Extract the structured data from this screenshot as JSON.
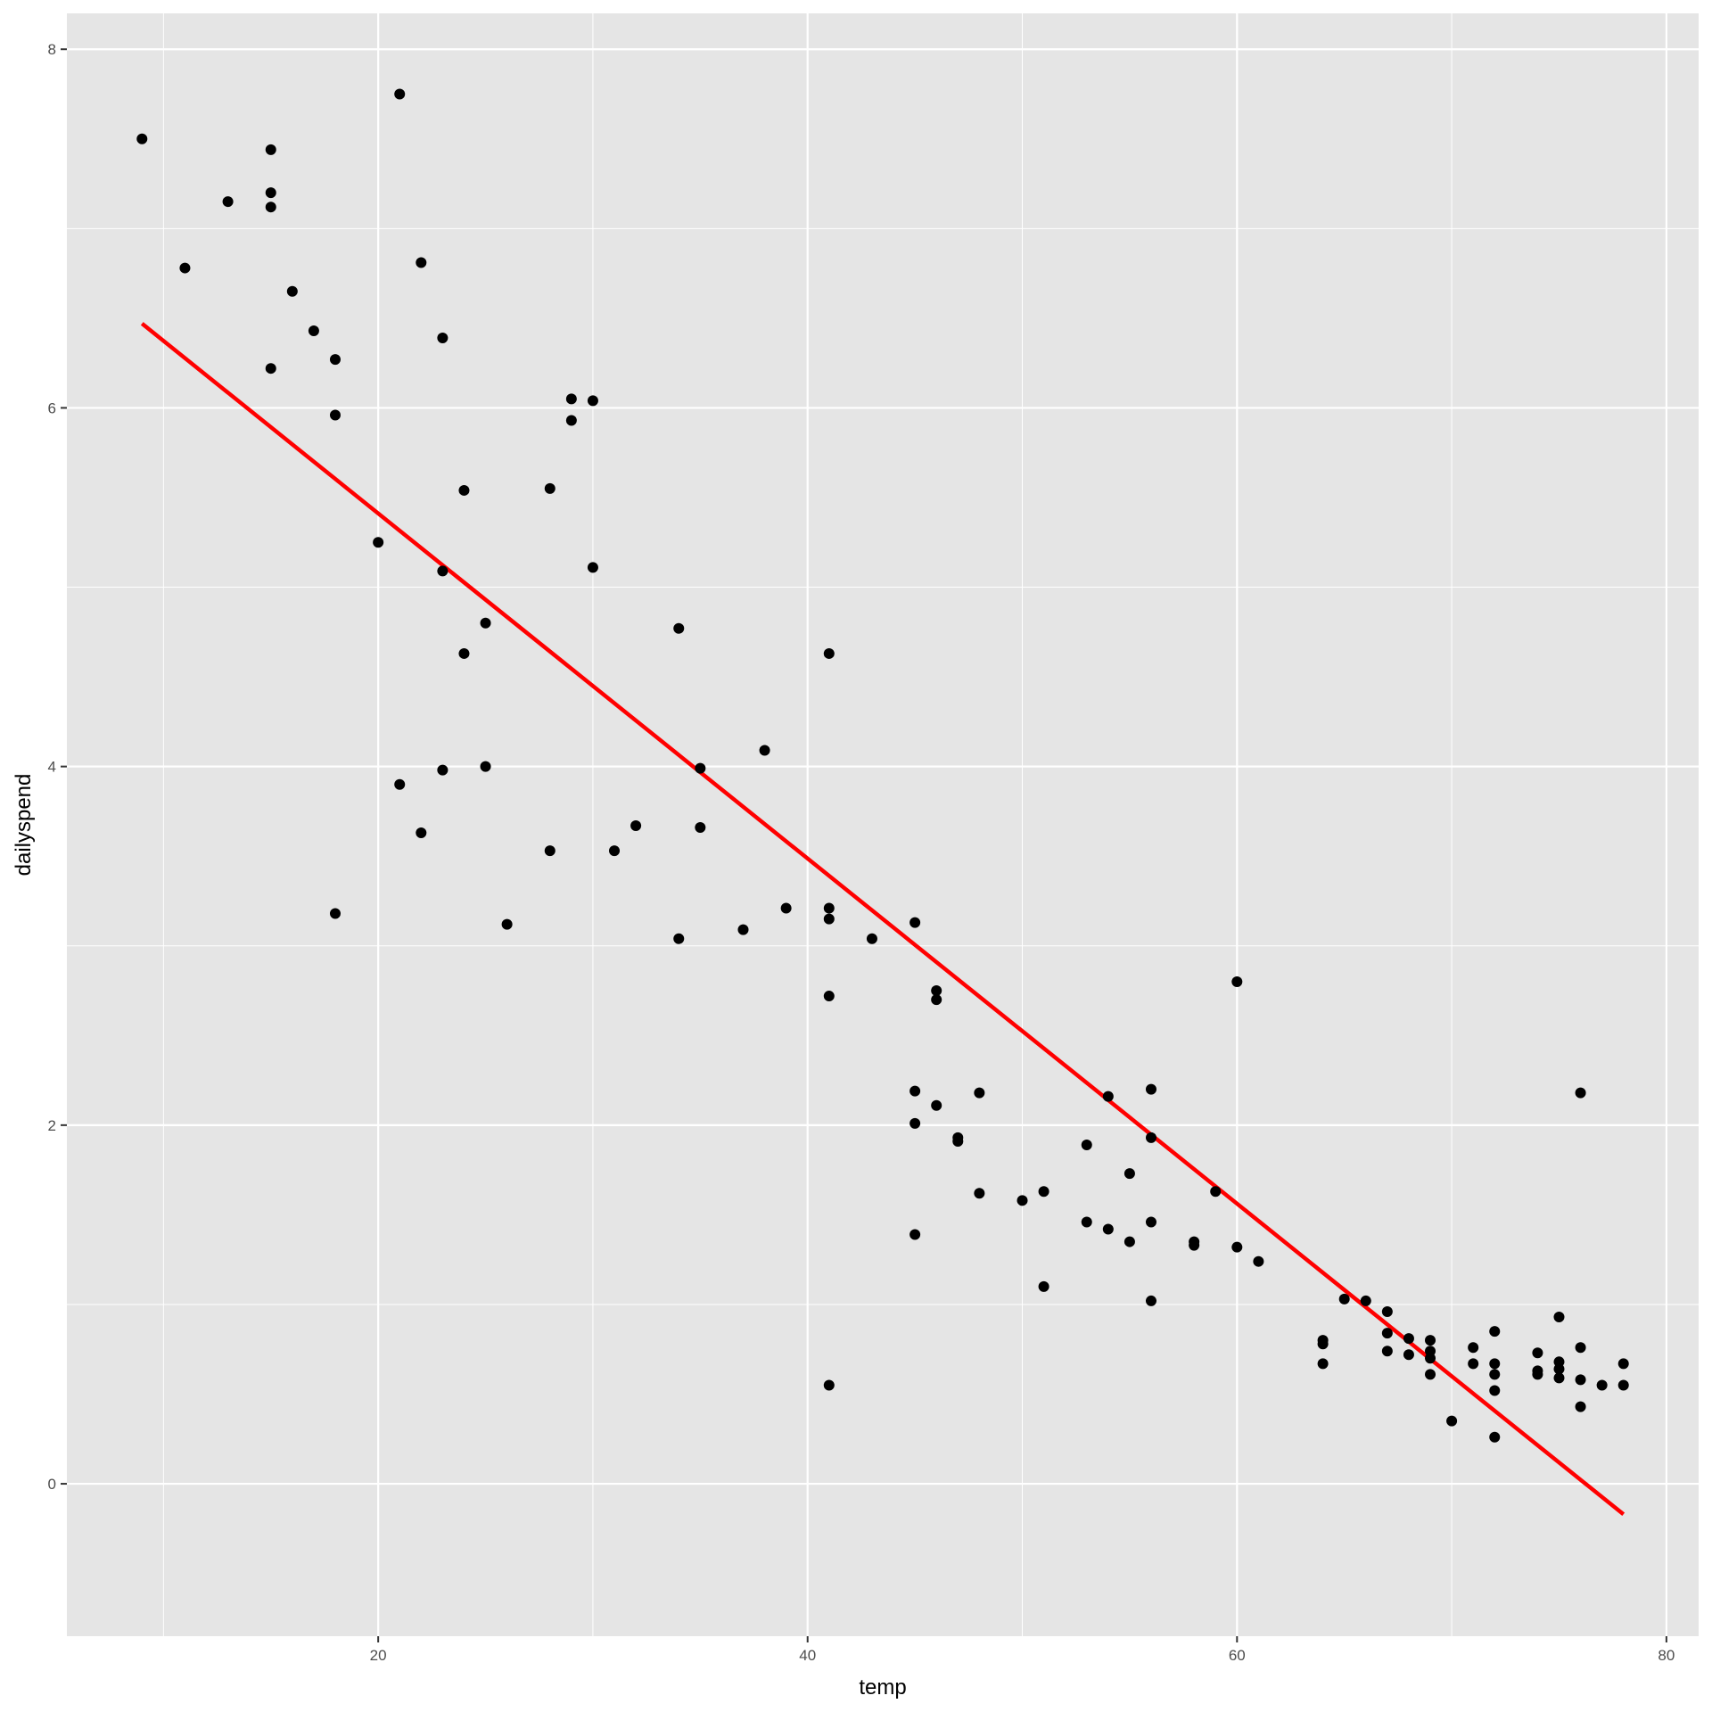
{
  "chart_data": {
    "type": "scatter",
    "title": "",
    "xlabel": "temp",
    "ylabel": "dailyspend",
    "xlim": [
      5.5,
      81.5
    ],
    "ylim": [
      -0.85,
      8.2
    ],
    "x_ticks": [
      20,
      40,
      60,
      80
    ],
    "y_ticks": [
      0,
      2,
      4,
      6,
      8
    ],
    "grid": true,
    "background": "#E5E5E5",
    "grid_color": "#FFFFFF",
    "point_color": "#000000",
    "line_color": "#FF0000",
    "points": [
      [
        9,
        7.5
      ],
      [
        11,
        6.78
      ],
      [
        13,
        7.15
      ],
      [
        15,
        7.44
      ],
      [
        15,
        7.2
      ],
      [
        15,
        7.12
      ],
      [
        15,
        6.22
      ],
      [
        16,
        6.65
      ],
      [
        17,
        6.43
      ],
      [
        18,
        6.27
      ],
      [
        18,
        5.96
      ],
      [
        18,
        3.18
      ],
      [
        20,
        5.25
      ],
      [
        21,
        7.75
      ],
      [
        21,
        3.9
      ],
      [
        22,
        6.81
      ],
      [
        22,
        3.63
      ],
      [
        23,
        6.39
      ],
      [
        23,
        5.09
      ],
      [
        23,
        3.98
      ],
      [
        24,
        5.54
      ],
      [
        24,
        4.63
      ],
      [
        25,
        4.8
      ],
      [
        25,
        4.0
      ],
      [
        26,
        3.12
      ],
      [
        28,
        5.55
      ],
      [
        28,
        3.53
      ],
      [
        29,
        6.05
      ],
      [
        29,
        5.93
      ],
      [
        30,
        6.04
      ],
      [
        30,
        5.11
      ],
      [
        31,
        3.53
      ],
      [
        32,
        3.67
      ],
      [
        34,
        4.77
      ],
      [
        34,
        3.04
      ],
      [
        35,
        3.99
      ],
      [
        35,
        3.66
      ],
      [
        37,
        3.09
      ],
      [
        38,
        4.09
      ],
      [
        39,
        3.21
      ],
      [
        41,
        4.63
      ],
      [
        41,
        3.21
      ],
      [
        41,
        3.15
      ],
      [
        41,
        2.72
      ],
      [
        41,
        0.55
      ],
      [
        43,
        3.04
      ],
      [
        45,
        3.13
      ],
      [
        45,
        2.19
      ],
      [
        45,
        2.01
      ],
      [
        45,
        1.39
      ],
      [
        46,
        2.75
      ],
      [
        46,
        2.7
      ],
      [
        46,
        2.11
      ],
      [
        47,
        1.93
      ],
      [
        47,
        1.91
      ],
      [
        48,
        2.18
      ],
      [
        48,
        1.62
      ],
      [
        50,
        1.58
      ],
      [
        51,
        1.63
      ],
      [
        51,
        1.1
      ],
      [
        53,
        1.89
      ],
      [
        53,
        1.46
      ],
      [
        54,
        2.16
      ],
      [
        54,
        1.42
      ],
      [
        55,
        1.73
      ],
      [
        55,
        1.35
      ],
      [
        56,
        2.2
      ],
      [
        56,
        1.93
      ],
      [
        56,
        1.46
      ],
      [
        56,
        1.02
      ],
      [
        58,
        1.35
      ],
      [
        58,
        1.33
      ],
      [
        59,
        1.63
      ],
      [
        60,
        2.8
      ],
      [
        60,
        1.32
      ],
      [
        61,
        1.24
      ],
      [
        64,
        0.8
      ],
      [
        64,
        0.78
      ],
      [
        64,
        0.67
      ],
      [
        65,
        1.03
      ],
      [
        66,
        1.02
      ],
      [
        67,
        0.96
      ],
      [
        67,
        0.84
      ],
      [
        67,
        0.74
      ],
      [
        68,
        0.81
      ],
      [
        68,
        0.72
      ],
      [
        69,
        0.8
      ],
      [
        69,
        0.74
      ],
      [
        69,
        0.7
      ],
      [
        69,
        0.61
      ],
      [
        70,
        0.35
      ],
      [
        71,
        0.76
      ],
      [
        71,
        0.67
      ],
      [
        72,
        0.85
      ],
      [
        72,
        0.67
      ],
      [
        72,
        0.61
      ],
      [
        72,
        0.52
      ],
      [
        72,
        0.26
      ],
      [
        74,
        0.73
      ],
      [
        74,
        0.63
      ],
      [
        74,
        0.61
      ],
      [
        75,
        0.93
      ],
      [
        75,
        0.68
      ],
      [
        75,
        0.64
      ],
      [
        75,
        0.59
      ],
      [
        76,
        2.18
      ],
      [
        76,
        0.76
      ],
      [
        76,
        0.58
      ],
      [
        76,
        0.43
      ],
      [
        77,
        0.55
      ],
      [
        78,
        0.67
      ],
      [
        78,
        0.55
      ]
    ],
    "fit_line": {
      "x": [
        9,
        78
      ],
      "y": [
        6.47,
        -0.17
      ]
    }
  }
}
